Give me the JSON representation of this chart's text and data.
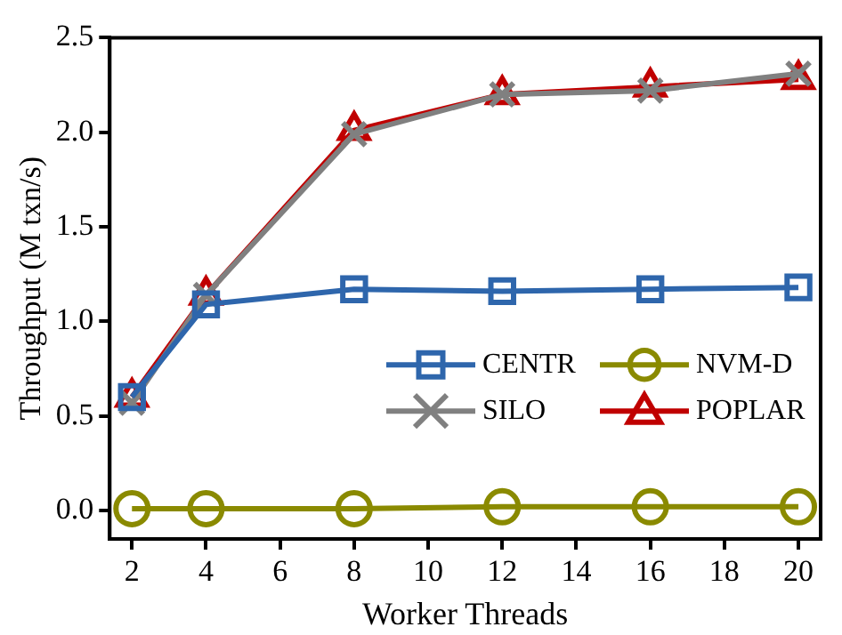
{
  "chart_data": {
    "type": "line",
    "xlabel": "Worker Threads",
    "ylabel": "Throughput (M txn/s)",
    "x": [
      2,
      4,
      8,
      12,
      16,
      20
    ],
    "series": [
      {
        "name": "CENTR",
        "color": "#2e66ac",
        "marker": "square",
        "values": [
          0.6,
          1.09,
          1.17,
          1.16,
          1.17,
          1.18
        ]
      },
      {
        "name": "NVM-D",
        "color": "#8a8a00",
        "marker": "circle",
        "values": [
          0.01,
          0.01,
          0.01,
          0.02,
          0.02,
          0.02
        ]
      },
      {
        "name": "SILO",
        "color": "#808080",
        "marker": "cross",
        "values": [
          0.57,
          1.14,
          1.99,
          2.2,
          2.22,
          2.31
        ]
      },
      {
        "name": "POPLAR",
        "color": "#c00000",
        "marker": "triangle",
        "values": [
          0.6,
          1.14,
          2.01,
          2.2,
          2.24,
          2.28
        ]
      }
    ],
    "xlim": [
      1.4,
      20.6
    ],
    "xticks": [
      2,
      4,
      6,
      8,
      10,
      12,
      14,
      16,
      18,
      20
    ],
    "ylim": [
      -0.15,
      2.5
    ],
    "yticks": [
      {
        "value": 0,
        "label": "0.0"
      },
      {
        "value": 0.5,
        "label": "0.5"
      },
      {
        "value": 1,
        "label": "1.0"
      },
      {
        "value": 1.5,
        "label": "1.5"
      },
      {
        "value": 2,
        "label": "2.0"
      },
      {
        "value": 2.5,
        "label": "2.5"
      }
    ],
    "grid": false,
    "legend": "right"
  }
}
